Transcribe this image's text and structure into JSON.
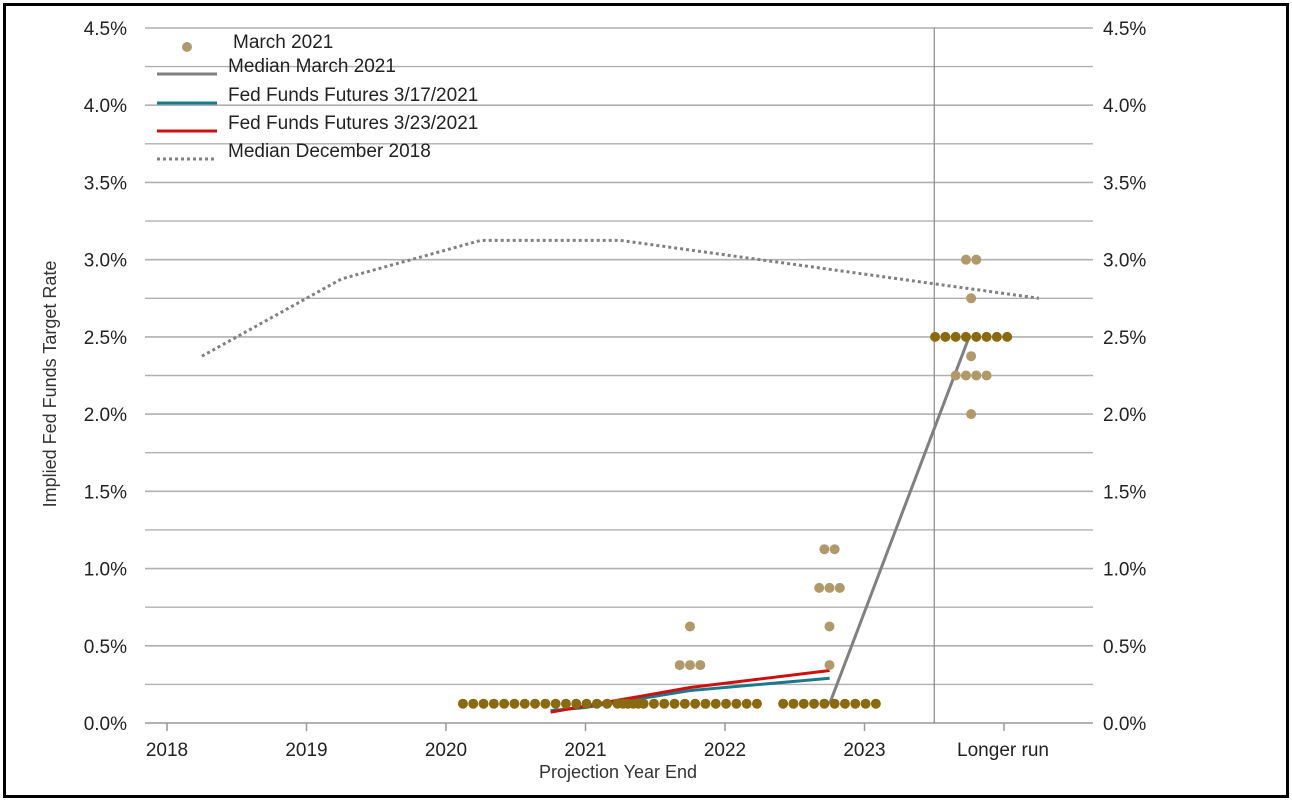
{
  "chart_data": {
    "type": "scatter",
    "xlabel": "Projection Year End",
    "ylabel": "Implied Fed Funds Target Rate",
    "categories": [
      "2018",
      "2019",
      "2020",
      "2021",
      "2022",
      "2023",
      "Longer run"
    ],
    "ylim": [
      0,
      4.5
    ],
    "yticks": [
      "0.0%",
      "0.5%",
      "1.0%",
      "1.5%",
      "2.0%",
      "2.5%",
      "3.0%",
      "3.5%",
      "4.0%",
      "4.5%"
    ],
    "grid": true,
    "legend_position": "top-left",
    "dots": {
      "name": "March 2021",
      "color": "#b09a6a",
      "dark_color": "#8a6a10",
      "groups": [
        {
          "x": 2021,
          "values": [
            0.125
          ],
          "counts": [
            18
          ],
          "dark": true
        },
        {
          "x": 2022,
          "values": [
            0.125,
            0.375,
            0.625
          ],
          "counts": [
            14,
            3,
            1
          ],
          "dark": true
        },
        {
          "x": 2023,
          "values": [
            0.125,
            0.375,
            0.625,
            0.875,
            1.125
          ],
          "counts": [
            10,
            1,
            1,
            3,
            2
          ],
          "dark": true
        },
        {
          "x": "Longer run",
          "values": [
            2.0,
            2.25,
            2.375,
            2.5,
            2.75,
            3.0
          ],
          "counts": [
            1,
            4,
            1,
            8,
            1,
            2
          ],
          "dark_value": 2.5
        }
      ]
    },
    "series": [
      {
        "name": "Median March 2021",
        "color": "#808080",
        "style": "solid",
        "points": [
          [
            2022.75,
            0.125
          ],
          [
            2023.75,
            2.5
          ]
        ]
      },
      {
        "name": "Fed Funds Futures 3/17/2021",
        "color": "#1a7a8a",
        "style": "solid",
        "points": [
          [
            2020.75,
            0.08
          ],
          [
            2021.0,
            0.1
          ],
          [
            2021.75,
            0.21
          ],
          [
            2022.75,
            0.29
          ]
        ]
      },
      {
        "name": "Fed Funds Futures 3/23/2021",
        "color": "#cc1111",
        "style": "solid",
        "points": [
          [
            2020.75,
            0.07
          ],
          [
            2021.0,
            0.11
          ],
          [
            2021.75,
            0.23
          ],
          [
            2022.75,
            0.34
          ]
        ]
      },
      {
        "name": "Median December 2018",
        "color": "#808080",
        "style": "dotted",
        "points": [
          [
            2018.25,
            2.375
          ],
          [
            2019.25,
            2.875
          ],
          [
            2020.25,
            3.125
          ],
          [
            2021.25,
            3.125
          ],
          [
            2022.25,
            3.0
          ],
          [
            2023.25,
            2.875
          ],
          [
            2024.25,
            2.75
          ]
        ]
      }
    ],
    "legend": [
      "March 2021",
      "Median March 2021",
      "Fed Funds Futures 3/17/2021",
      "Fed Funds Futures 3/23/2021",
      "Median December 2018"
    ]
  }
}
